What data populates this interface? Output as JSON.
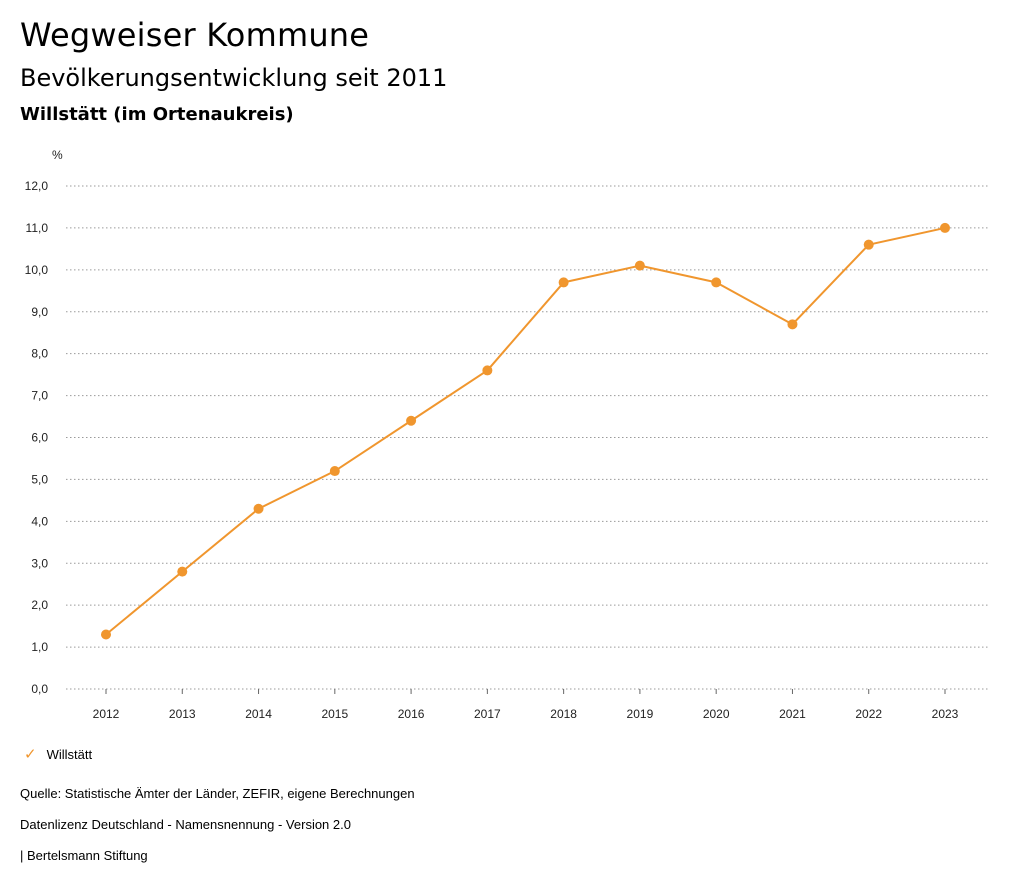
{
  "header": {
    "title": "Wegweiser Kommune",
    "subtitle": "Bevölkerungsentwicklung seit 2011",
    "region": "Willstätt (im Ortenaukreis)"
  },
  "chart_data": {
    "type": "line",
    "title": "Bevölkerungsentwicklung seit 2011",
    "ylabel": "%",
    "xlabel": "",
    "ylim": [
      0,
      12
    ],
    "y_ticks": [
      "0,0",
      "1,0",
      "2,0",
      "3,0",
      "4,0",
      "5,0",
      "6,0",
      "7,0",
      "8,0",
      "9,0",
      "10,0",
      "11,0",
      "12,0"
    ],
    "categories": [
      "2012",
      "2013",
      "2014",
      "2015",
      "2016",
      "2017",
      "2018",
      "2019",
      "2020",
      "2021",
      "2022",
      "2023"
    ],
    "series": [
      {
        "name": "Willstätt",
        "color": "#f0962e",
        "values": [
          1.3,
          2.8,
          4.3,
          5.2,
          6.4,
          7.6,
          9.7,
          10.1,
          9.7,
          8.7,
          10.6,
          11.0
        ]
      }
    ],
    "grid": true,
    "legend": "bottom-left"
  },
  "legend": {
    "label": "Willstätt",
    "icon": "check-icon"
  },
  "footer": {
    "source": "Quelle: Statistische Ämter der Länder, ZEFIR, eigene Berechnungen",
    "license": "Datenlizenz Deutschland - Namensnennung - Version 2.0",
    "publisher": "| Bertelsmann Stiftung"
  }
}
